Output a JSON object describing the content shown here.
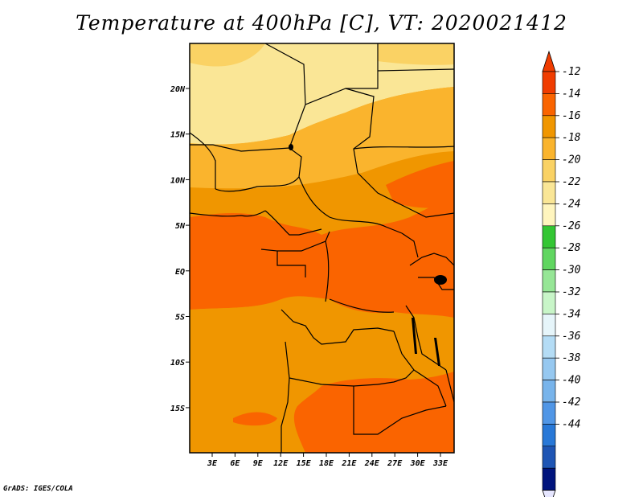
{
  "title": "Temperature at 400hPa [C], VT: 2020021412",
  "credit": "GrADS: IGES/COLA",
  "map": {
    "variable": "Temperature",
    "level": "400hPa",
    "units": "C",
    "valid_time": "2020021412",
    "lon_ticks": [
      "3E",
      "6E",
      "9E",
      "12E",
      "15E",
      "18E",
      "21E",
      "24E",
      "27E",
      "30E",
      "33E"
    ],
    "lat_ticks": [
      "20N",
      "15N",
      "10N",
      "5N",
      "EQ",
      "5S",
      "10S",
      "15S"
    ]
  },
  "colorbar": {
    "labels": [
      "-12",
      "-14",
      "-16",
      "-18",
      "-20",
      "-22",
      "-24",
      "-26",
      "-28",
      "-30",
      "-32",
      "-34",
      "-36",
      "-38",
      "-40",
      "-42",
      "-44"
    ],
    "colors": [
      "#f03c00",
      "#fa6400",
      "#f09600",
      "#fab42d",
      "#fad264",
      "#fae696",
      "#fff5be",
      "#33c633",
      "#60d660",
      "#96e696",
      "#c8f5c8",
      "#e6f5fa",
      "#b4dcf5",
      "#96c8f0",
      "#78b4eb",
      "#5096e6",
      "#2878d7",
      "#1e55b4",
      "#00147d"
    ],
    "top_color": "#f03c00",
    "bottom_color": "#e6e6ff"
  },
  "regions": [
    {
      "name": "north-pale-band",
      "color": "#fae696"
    },
    {
      "name": "sahel-band",
      "color": "#fad264"
    },
    {
      "name": "north-central-band",
      "color": "#fab42d"
    },
    {
      "name": "central-band",
      "color": "#f09600"
    },
    {
      "name": "equatorial-band",
      "color": "#fa6400"
    },
    {
      "name": "southern-band",
      "color": "#f09600"
    },
    {
      "name": "southern-warm-patch",
      "color": "#fa6400"
    }
  ]
}
